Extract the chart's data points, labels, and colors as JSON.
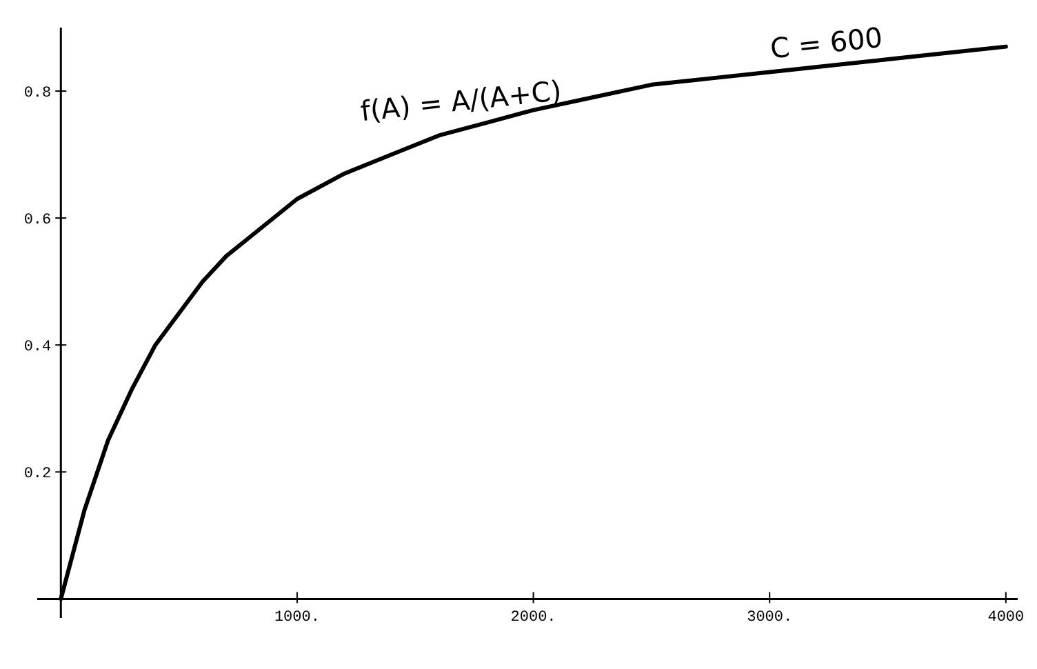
{
  "chart_data": {
    "type": "line",
    "x": [
      0,
      100,
      200,
      300,
      400,
      500,
      600,
      700,
      800,
      1000,
      1200,
      1400,
      1600,
      1800,
      2000,
      2250,
      2500,
      2750,
      3000,
      3250,
      3500,
      3750,
      4000
    ],
    "series": [
      {
        "color": "#000000",
        "values": [
          0,
          0.14,
          0.25,
          0.33,
          0.4,
          0.45,
          0.5,
          0.54,
          0.57,
          0.63,
          0.67,
          0.7,
          0.73,
          0.75,
          0.77,
          0.79,
          0.81,
          0.82,
          0.83,
          0.84,
          0.85,
          0.86,
          0.87
        ]
      }
    ],
    "xlim": [
      -100,
      4050
    ],
    "ylim": [
      -0.03,
      0.9
    ],
    "xticks": [
      {
        "value": 1000,
        "label": "1000."
      },
      {
        "value": 2000,
        "label": "2000."
      },
      {
        "value": 3000,
        "label": "3000."
      },
      {
        "value": 4000,
        "label": "4000"
      }
    ],
    "yticks": [
      0.2,
      0.4,
      0.6,
      0.8
    ],
    "grid": false,
    "marker": "none",
    "line_style": "solid",
    "annotations": [
      "f(A) = A/(A+C)",
      "C = 600"
    ]
  }
}
